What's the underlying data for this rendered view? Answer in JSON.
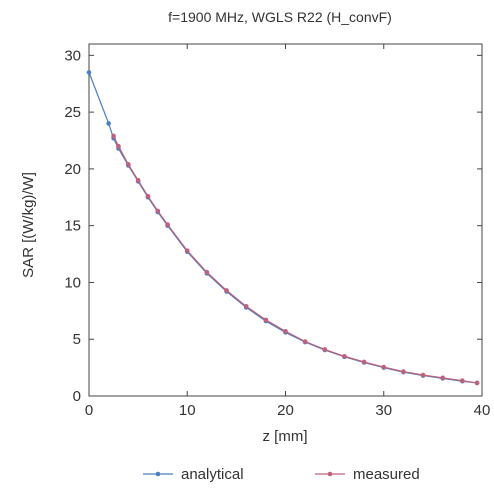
{
  "chart_data": {
    "type": "line",
    "title": "f=1900 MHz, WGLS R22 (H_convF)",
    "xlabel": "z [mm]",
    "ylabel": "SAR [(W/kg)/W]",
    "xlim": [
      0,
      40
    ],
    "ylim": [
      0,
      31
    ],
    "xticks": [
      0,
      10,
      20,
      30,
      40
    ],
    "yticks": [
      0,
      5,
      10,
      15,
      20,
      25,
      30
    ],
    "grid": false,
    "legend_position": "bottom",
    "series": [
      {
        "name": "analytical",
        "color": "#4a7fc4",
        "marker": "circle",
        "x": [
          0,
          2,
          2.5,
          3,
          4,
          5,
          6,
          7,
          8,
          10,
          12,
          14,
          16,
          18,
          20,
          22,
          24,
          26,
          28,
          30,
          32,
          34,
          36,
          38,
          39.5
        ],
        "y": [
          28.5,
          24.0,
          22.7,
          21.8,
          20.3,
          18.9,
          17.5,
          16.2,
          15.0,
          12.7,
          10.8,
          9.2,
          7.8,
          6.6,
          5.6,
          4.75,
          4.05,
          3.45,
          2.95,
          2.5,
          2.1,
          1.8,
          1.55,
          1.3,
          1.15
        ]
      },
      {
        "name": "measured",
        "color": "#c0607a",
        "marker": "circle",
        "x": [
          2.5,
          3,
          4,
          5,
          6,
          7,
          8,
          10,
          12,
          14,
          16,
          18,
          20,
          22,
          24,
          26,
          28,
          30,
          32,
          34,
          36,
          38,
          39.5
        ],
        "y": [
          22.9,
          22.0,
          20.4,
          19.0,
          17.6,
          16.3,
          15.1,
          12.8,
          10.9,
          9.3,
          7.9,
          6.7,
          5.7,
          4.8,
          4.1,
          3.5,
          3.0,
          2.55,
          2.15,
          1.85,
          1.6,
          1.35,
          1.15
        ]
      }
    ]
  }
}
